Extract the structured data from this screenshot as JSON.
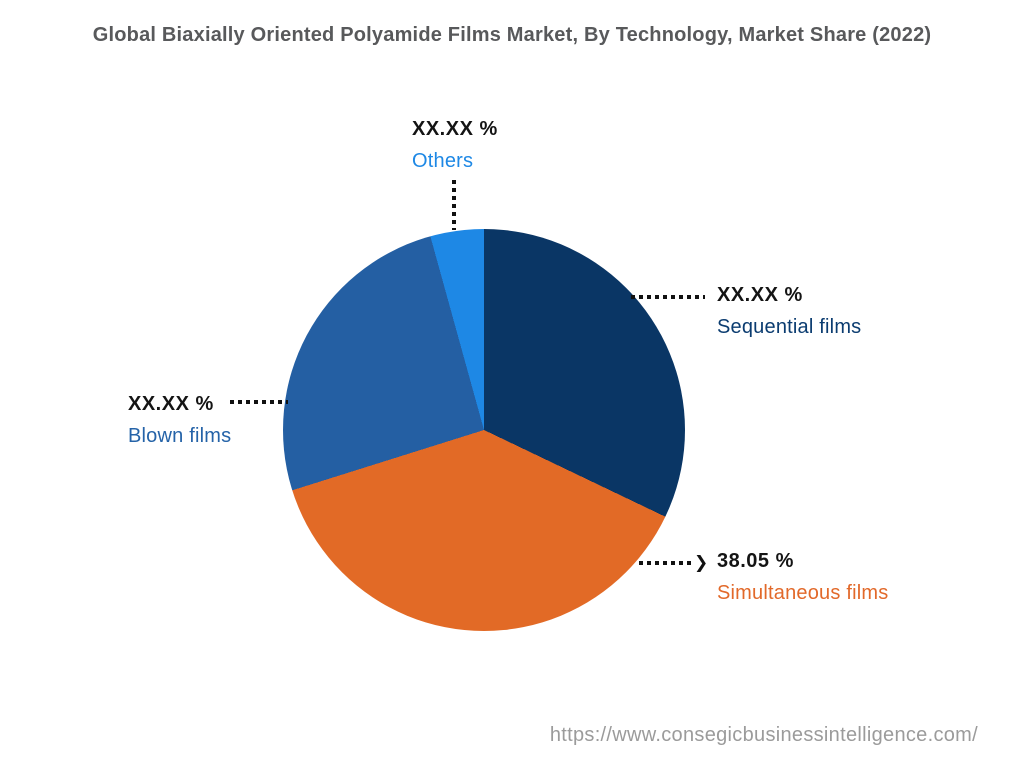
{
  "title": "Global Biaxially Oriented Polyamide Films Market, By Technology, Market Share (2022)",
  "footer": {
    "url": "https://www.consegicbusinessintelligence.com/"
  },
  "chart_data": {
    "type": "pie",
    "title": "Global Biaxially Oriented Polyamide Films Market, By Technology, Market Share (2022)",
    "start_angle_deg": 0,
    "direction": "clockwise",
    "legend": "callout-labels",
    "slices": [
      {
        "label": "Sequential films",
        "display_value": "XX.XX %",
        "share_pct_est": 32.1,
        "color": "#0A3665",
        "label_color": "#0B3C70"
      },
      {
        "label": "Simultaneous films",
        "display_value": "38.05 %",
        "share_pct_est": 38.05,
        "color": "#E26A26",
        "label_color": "#E2692A"
      },
      {
        "label": "Blown films",
        "display_value": "XX.XX %",
        "share_pct_est": 25.55,
        "color": "#245FA3",
        "label_color": "#2563A8"
      },
      {
        "label": "Others",
        "display_value": "XX.XX %",
        "share_pct_est": 4.3,
        "color": "#1E88E5",
        "label_color": "#1E88E5"
      }
    ]
  }
}
